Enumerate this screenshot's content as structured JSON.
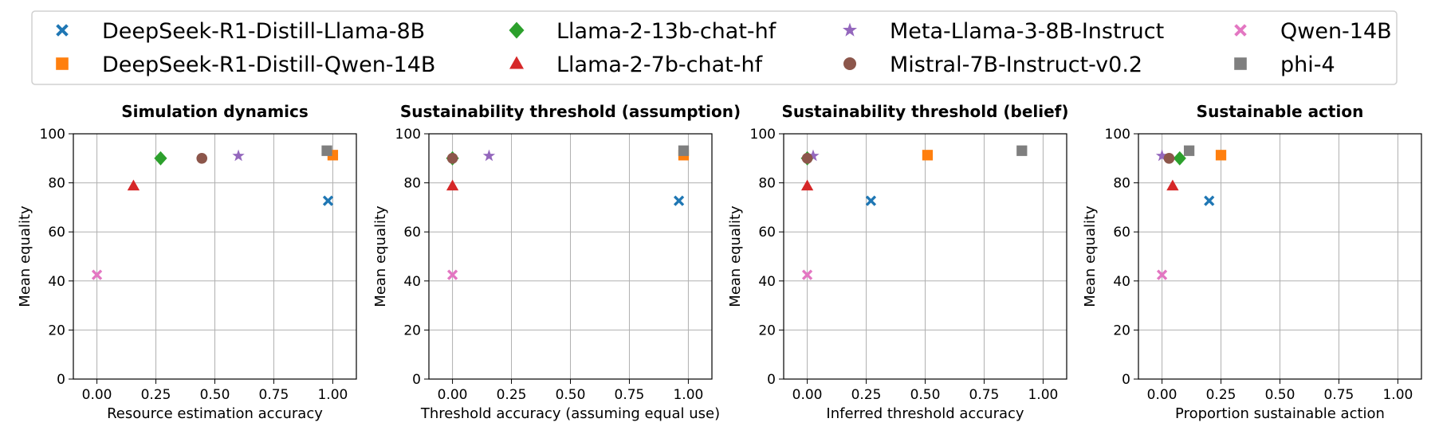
{
  "legend": {
    "entries": [
      {
        "name": "DeepSeek-R1-Distill-Llama-8B",
        "color": "#1f77b4",
        "marker": "x-icon"
      },
      {
        "name": "DeepSeek-R1-Distill-Qwen-14B",
        "color": "#ff7f0e",
        "marker": "square-icon"
      },
      {
        "name": "Llama-2-13b-chat-hf",
        "color": "#2ca02c",
        "marker": "diamond-icon"
      },
      {
        "name": "Llama-2-7b-chat-hf",
        "color": "#d62728",
        "marker": "triangle-icon"
      },
      {
        "name": "Meta-Llama-3-8B-Instruct",
        "color": "#9467bd",
        "marker": "star-icon"
      },
      {
        "name": "Mistral-7B-Instruct-v0.2",
        "color": "#8c564b",
        "marker": "circle-icon"
      },
      {
        "name": "Qwen-14B",
        "color": "#e377c2",
        "marker": "x-icon"
      },
      {
        "name": "phi-4",
        "color": "#7f7f7f",
        "marker": "square-icon"
      }
    ],
    "placement": "top"
  },
  "chart_data": [
    {
      "type": "scatter",
      "title": "Simulation dynamics",
      "xlabel": "Resource estimation accuracy",
      "ylabel": "Mean equality",
      "xlim": [
        -0.1,
        1.1
      ],
      "ylim": [
        0,
        100
      ],
      "xticks": [
        "0.00",
        "0.25",
        "0.50",
        "0.75",
        "1.00"
      ],
      "yticks": [
        "0",
        "20",
        "40",
        "60",
        "80",
        "100"
      ],
      "grid": true,
      "points": [
        {
          "series": "DeepSeek-R1-Distill-Llama-8B",
          "x": 0.98,
          "y": 72.7
        },
        {
          "series": "DeepSeek-R1-Distill-Qwen-14B",
          "x": 1.0,
          "y": 91.3
        },
        {
          "series": "Llama-2-13b-chat-hf",
          "x": 0.27,
          "y": 90.0
        },
        {
          "series": "Llama-2-7b-chat-hf",
          "x": 0.155,
          "y": 78.7
        },
        {
          "series": "Meta-Llama-3-8B-Instruct",
          "x": 0.6,
          "y": 91.0
        },
        {
          "series": "Mistral-7B-Instruct-v0.2",
          "x": 0.445,
          "y": 90.0
        },
        {
          "series": "Qwen-14B",
          "x": 0.0,
          "y": 42.5
        },
        {
          "series": "phi-4",
          "x": 0.975,
          "y": 93.1
        }
      ]
    },
    {
      "type": "scatter",
      "title": "Sustainability threshold (assumption)",
      "xlabel": "Threshold accuracy (assuming equal use)",
      "ylabel": "Mean equality",
      "xlim": [
        -0.1,
        1.1
      ],
      "ylim": [
        0,
        100
      ],
      "xticks": [
        "0.00",
        "0.25",
        "0.50",
        "0.75",
        "1.00"
      ],
      "yticks": [
        "0",
        "20",
        "40",
        "60",
        "80",
        "100"
      ],
      "grid": true,
      "points": [
        {
          "series": "DeepSeek-R1-Distill-Llama-8B",
          "x": 0.96,
          "y": 72.7
        },
        {
          "series": "DeepSeek-R1-Distill-Qwen-14B",
          "x": 0.98,
          "y": 91.3
        },
        {
          "series": "Llama-2-13b-chat-hf",
          "x": 0.0,
          "y": 90.0
        },
        {
          "series": "Llama-2-7b-chat-hf",
          "x": 0.0,
          "y": 78.7
        },
        {
          "series": "Meta-Llama-3-8B-Instruct",
          "x": 0.155,
          "y": 91.0
        },
        {
          "series": "Mistral-7B-Instruct-v0.2",
          "x": 0.0,
          "y": 90.0
        },
        {
          "series": "Qwen-14B",
          "x": 0.0,
          "y": 42.5
        },
        {
          "series": "phi-4",
          "x": 0.98,
          "y": 93.1
        }
      ]
    },
    {
      "type": "scatter",
      "title": "Sustainability threshold (belief)",
      "xlabel": "Inferred threshold accuracy",
      "ylabel": "Mean equality",
      "xlim": [
        -0.1,
        1.1
      ],
      "ylim": [
        0,
        100
      ],
      "xticks": [
        "0.00",
        "0.25",
        "0.50",
        "0.75",
        "1.00"
      ],
      "yticks": [
        "0",
        "20",
        "40",
        "60",
        "80",
        "100"
      ],
      "grid": true,
      "points": [
        {
          "series": "DeepSeek-R1-Distill-Llama-8B",
          "x": 0.27,
          "y": 72.7
        },
        {
          "series": "DeepSeek-R1-Distill-Qwen-14B",
          "x": 0.51,
          "y": 91.3
        },
        {
          "series": "Llama-2-13b-chat-hf",
          "x": 0.0,
          "y": 90.0
        },
        {
          "series": "Llama-2-7b-chat-hf",
          "x": 0.0,
          "y": 78.7
        },
        {
          "series": "Meta-Llama-3-8B-Instruct",
          "x": 0.025,
          "y": 91.0
        },
        {
          "series": "Mistral-7B-Instruct-v0.2",
          "x": 0.0,
          "y": 90.0
        },
        {
          "series": "Qwen-14B",
          "x": 0.0,
          "y": 42.5
        },
        {
          "series": "phi-4",
          "x": 0.91,
          "y": 93.1
        }
      ]
    },
    {
      "type": "scatter",
      "title": "Sustainable action",
      "xlabel": "Proportion sustainable action",
      "ylabel": "Mean equality",
      "xlim": [
        -0.1,
        1.1
      ],
      "ylim": [
        0,
        100
      ],
      "xticks": [
        "0.00",
        "0.25",
        "0.50",
        "0.75",
        "1.00"
      ],
      "yticks": [
        "0",
        "20",
        "40",
        "60",
        "80",
        "100"
      ],
      "grid": true,
      "points": [
        {
          "series": "DeepSeek-R1-Distill-Llama-8B",
          "x": 0.2,
          "y": 72.7
        },
        {
          "series": "DeepSeek-R1-Distill-Qwen-14B",
          "x": 0.25,
          "y": 91.3
        },
        {
          "series": "Llama-2-13b-chat-hf",
          "x": 0.075,
          "y": 90.0
        },
        {
          "series": "Llama-2-7b-chat-hf",
          "x": 0.045,
          "y": 78.7
        },
        {
          "series": "Meta-Llama-3-8B-Instruct",
          "x": 0.0,
          "y": 91.0
        },
        {
          "series": "Mistral-7B-Instruct-v0.2",
          "x": 0.03,
          "y": 90.0
        },
        {
          "series": "Qwen-14B",
          "x": 0.0,
          "y": 42.5
        },
        {
          "series": "phi-4",
          "x": 0.115,
          "y": 93.1
        }
      ]
    }
  ]
}
